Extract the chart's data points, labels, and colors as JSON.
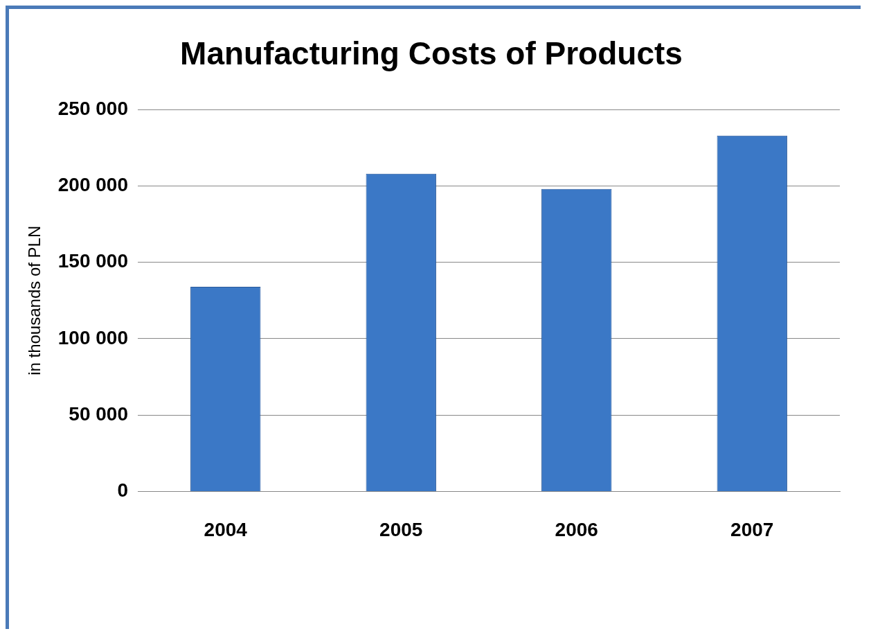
{
  "chart_data": {
    "type": "bar",
    "title": "Manufacturing Costs of Products",
    "ylabel": "in thousands of PLN",
    "categories": [
      "2004",
      "2005",
      "2006",
      "2007"
    ],
    "values": [
      134000,
      208000,
      198000,
      233000
    ],
    "color": "#3b78c6",
    "ylim": [
      0,
      250000
    ],
    "yticks": [
      {
        "value": 0,
        "label": "0"
      },
      {
        "value": 50000,
        "label": "50 000"
      },
      {
        "value": 100000,
        "label": "100 000"
      },
      {
        "value": 150000,
        "label": "150 000"
      },
      {
        "value": 200000,
        "label": "200 000"
      },
      {
        "value": 250000,
        "label": "250 000"
      }
    ],
    "grid": "y"
  }
}
